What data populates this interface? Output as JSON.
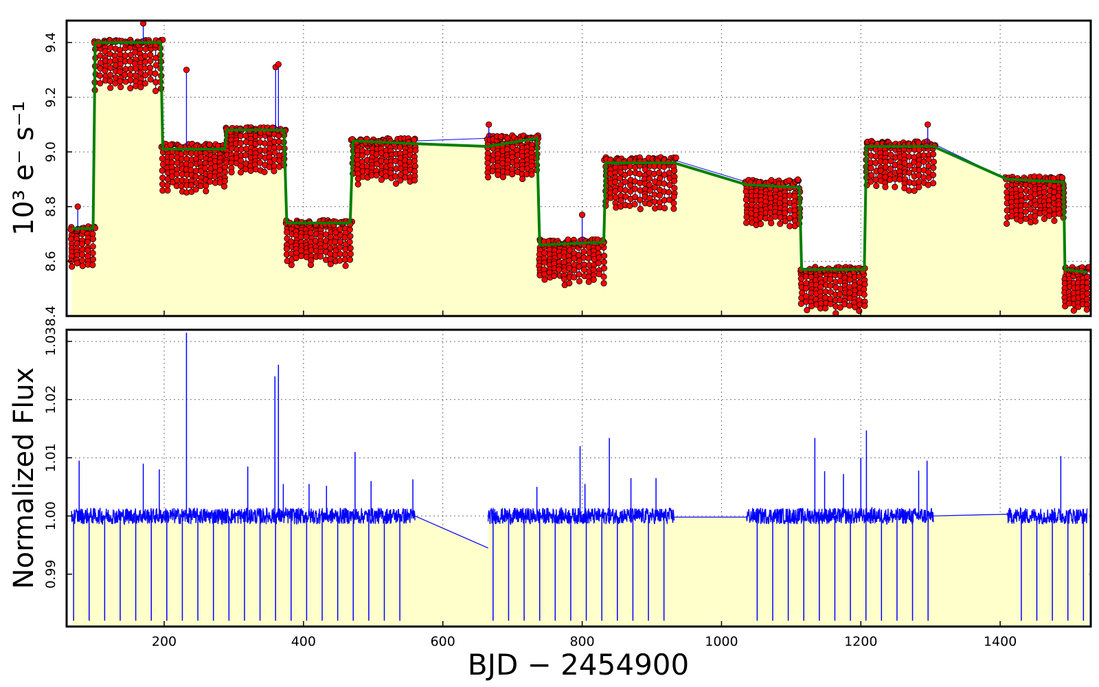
{
  "chart_data": [
    {
      "type": "line",
      "panel": "top",
      "ylabel": "10³ e⁻ s⁻¹",
      "xlim": [
        60,
        1530
      ],
      "ylim": [
        8.4,
        9.48
      ],
      "grid": true,
      "legend": "none",
      "yticks": [
        8.4,
        8.6,
        8.8,
        9.0,
        9.2,
        9.4
      ],
      "ytick_labels": [
        "8.4",
        "8.6",
        "8.8",
        "9.0",
        "9.2",
        "9.4"
      ],
      "xticks": [
        200,
        400,
        600,
        800,
        1000,
        1200,
        1400
      ],
      "colors": {
        "data": "#0000ff",
        "model": "#007f00",
        "points": "#ff0000",
        "fill": "#ffffcc"
      },
      "quarters": [
        {
          "x": [
            67,
            98
          ],
          "level": 8.72,
          "spread": 0.15
        },
        {
          "x": [
            101,
            195
          ],
          "level": 9.4,
          "spread": 0.18
        },
        {
          "x": [
            198,
            287
          ],
          "level": 9.02,
          "spread": 0.17
        },
        {
          "x": [
            290,
            372
          ],
          "level": 9.08,
          "spread": 0.16
        },
        {
          "x": [
            376,
            467
          ],
          "level": 8.74,
          "spread": 0.16
        },
        {
          "x": [
            471,
            560
          ],
          "level": 9.04,
          "spread": 0.16
        },
        {
          "x": [
            665,
            735
          ],
          "level": 9.05,
          "spread": 0.15
        },
        {
          "x": [
            739,
            831
          ],
          "level": 8.67,
          "spread": 0.16
        },
        {
          "x": [
            834,
            932
          ],
          "level": 8.97,
          "spread": 0.18
        },
        {
          "x": [
            1036,
            1112
          ],
          "level": 8.89,
          "spread": 0.16
        },
        {
          "x": [
            1115,
            1205
          ],
          "level": 8.57,
          "spread": 0.16
        },
        {
          "x": [
            1208,
            1304
          ],
          "level": 9.03,
          "spread": 0.17
        },
        {
          "x": [
            1410,
            1491
          ],
          "level": 8.9,
          "spread": 0.16
        },
        {
          "x": [
            1493,
            1525
          ],
          "level": 8.57,
          "spread": 0.16
        }
      ],
      "model_curve": {
        "x": [
          67,
          98,
          101,
          195,
          198,
          287,
          290,
          372,
          376,
          467,
          471,
          560,
          665,
          735,
          739,
          831,
          834,
          932,
          1036,
          1112,
          1115,
          1205,
          1208,
          1304,
          1410,
          1491,
          1493,
          1525
        ],
        "y": [
          8.72,
          8.72,
          9.4,
          9.4,
          9.01,
          9.01,
          9.08,
          9.08,
          8.74,
          8.74,
          9.04,
          9.03,
          9.02,
          9.05,
          8.66,
          8.67,
          8.96,
          8.96,
          8.88,
          8.87,
          8.57,
          8.57,
          9.02,
          9.02,
          8.9,
          8.89,
          8.57,
          8.56
        ]
      },
      "spikes": [
        {
          "x": 232,
          "y": 9.3
        },
        {
          "x": 360,
          "y": 9.31
        },
        {
          "x": 364,
          "y": 9.32
        },
        {
          "x": 170,
          "y": 9.47
        },
        {
          "x": 76,
          "y": 8.8
        },
        {
          "x": 666,
          "y": 9.1
        },
        {
          "x": 1296,
          "y": 9.1
        },
        {
          "x": 800,
          "y": 8.77
        }
      ]
    },
    {
      "type": "line",
      "panel": "bottom",
      "xlabel": "BJD − 2454900",
      "ylabel": "Normalized Flux",
      "xlim": [
        60,
        1530
      ],
      "ylim": [
        0.981,
        1.032
      ],
      "grid": true,
      "legend": "none",
      "yticks": [
        0.99,
        1.0,
        1.01,
        1.02,
        1.03
      ],
      "ytick_labels": [
        "0.99",
        "1.00",
        "1.01",
        "1.02",
        "1.03"
      ],
      "xticks": [
        200,
        400,
        600,
        800,
        1000,
        1200,
        1400
      ],
      "xtick_labels": [
        "200",
        "400",
        "600",
        "800",
        "1000",
        "1200",
        "1400"
      ],
      "baseline": 1.0,
      "segments": [
        [
          67,
          560
        ],
        [
          665,
          932
        ],
        [
          1036,
          1304
        ],
        [
          1410,
          1525
        ]
      ],
      "gap_lines": [
        {
          "x": [
            560,
            665
          ],
          "y": [
            1.0,
            0.9945
          ]
        },
        {
          "x": [
            932,
            1036
          ],
          "y": [
            0.9998,
            0.9998
          ]
        },
        {
          "x": [
            1304,
            1410
          ],
          "y": [
            1.0,
            1.0003
          ]
        }
      ],
      "transit_period": 22.3,
      "transit_first": 70,
      "transit_depth_bottom": 0.982,
      "flares": [
        {
          "x": 78,
          "y": 1.0095
        },
        {
          "x": 170,
          "y": 1.009
        },
        {
          "x": 193,
          "y": 1.008
        },
        {
          "x": 232,
          "y": 1.0315
        },
        {
          "x": 320,
          "y": 1.0085
        },
        {
          "x": 359,
          "y": 1.024
        },
        {
          "x": 364,
          "y": 1.026
        },
        {
          "x": 371,
          "y": 1.0055
        },
        {
          "x": 408,
          "y": 1.0055
        },
        {
          "x": 433,
          "y": 1.0052
        },
        {
          "x": 474,
          "y": 1.011
        },
        {
          "x": 497,
          "y": 1.006
        },
        {
          "x": 557,
          "y": 1.0063
        },
        {
          "x": 735,
          "y": 1.005
        },
        {
          "x": 797,
          "y": 1.012
        },
        {
          "x": 804,
          "y": 1.0055
        },
        {
          "x": 839,
          "y": 1.0134
        },
        {
          "x": 870,
          "y": 1.0065
        },
        {
          "x": 906,
          "y": 1.0065
        },
        {
          "x": 1134,
          "y": 1.0134
        },
        {
          "x": 1148,
          "y": 1.0077
        },
        {
          "x": 1175,
          "y": 1.0072
        },
        {
          "x": 1200,
          "y": 1.01
        },
        {
          "x": 1208,
          "y": 1.0147
        },
        {
          "x": 1283,
          "y": 1.0078
        },
        {
          "x": 1295,
          "y": 1.0095
        },
        {
          "x": 1487,
          "y": 1.0103
        }
      ]
    }
  ]
}
